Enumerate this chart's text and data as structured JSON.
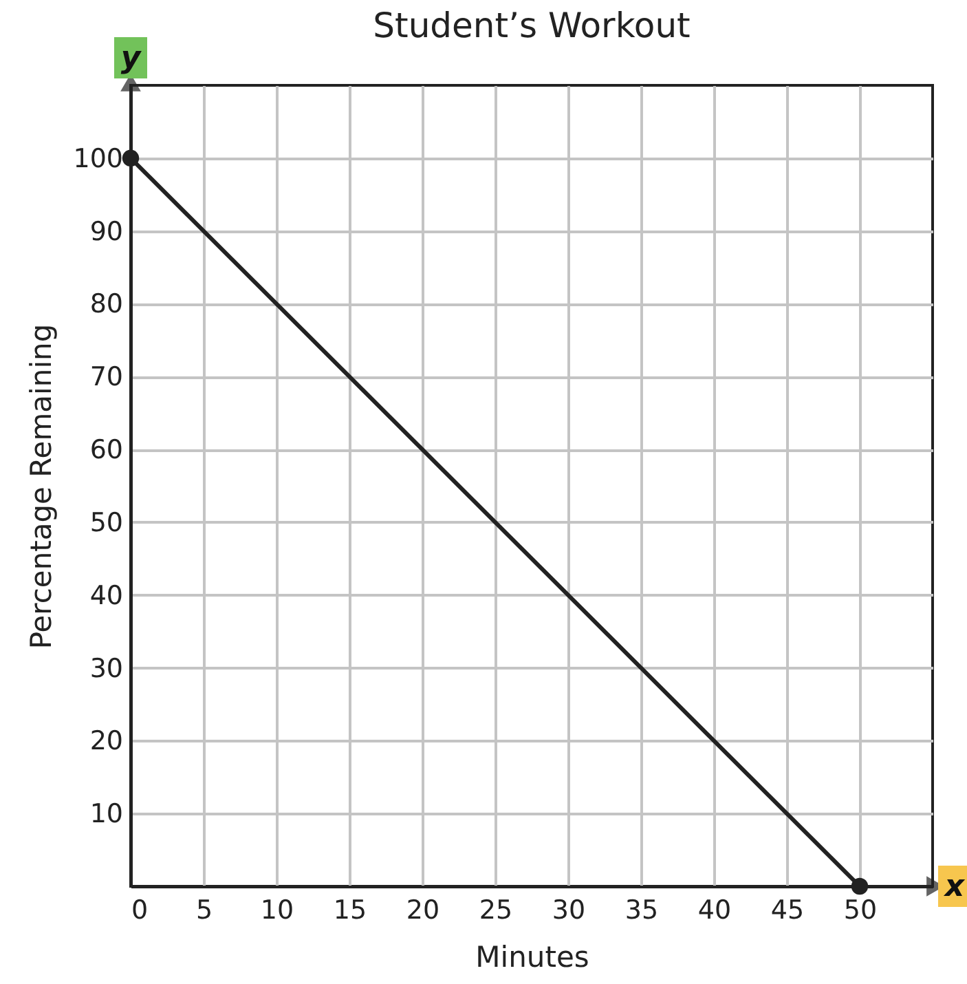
{
  "chart_data": {
    "type": "line",
    "title": "Student’s Workout",
    "xlabel": "Minutes",
    "ylabel": "Percentage Remaining",
    "x": [
      0,
      50
    ],
    "series": [
      {
        "color": "#222222",
        "values": [
          100,
          0
        ]
      }
    ],
    "xlim": [
      0,
      55
    ],
    "ylim": [
      0,
      110
    ],
    "xticks": [
      0,
      5,
      10,
      15,
      20,
      25,
      30,
      35,
      40,
      45,
      50
    ],
    "yticks": [
      10,
      20,
      30,
      40,
      50,
      60,
      70,
      80,
      90,
      100
    ],
    "grid": true,
    "marker": "circle",
    "line_style": "solid",
    "annotations": [
      "y",
      "x"
    ]
  }
}
